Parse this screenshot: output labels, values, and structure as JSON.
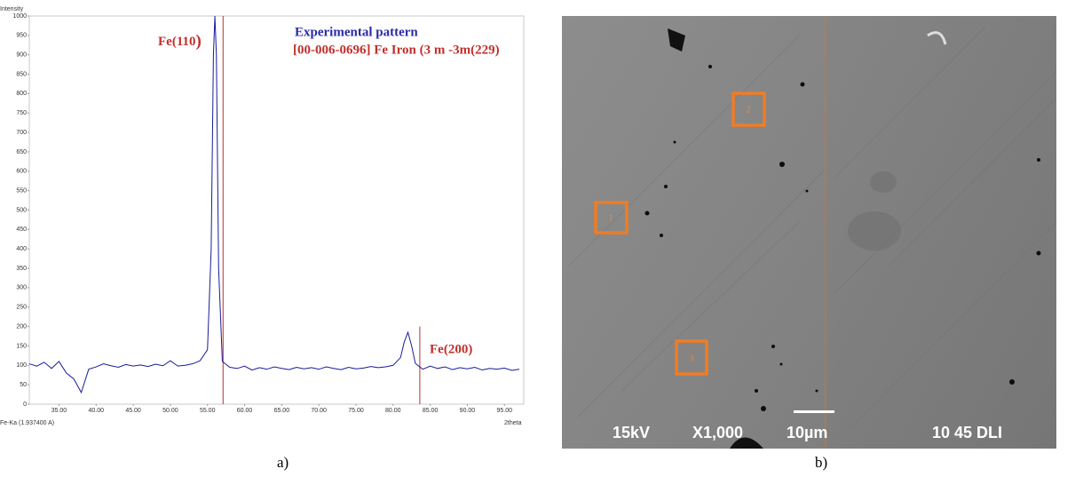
{
  "chart_data": {
    "type": "line",
    "y_axis_label": "Intensity",
    "x_axis_note": "Fe-Ka (1.937400 A)",
    "x_axis_label": "2theta",
    "xlim": [
      31,
      97.6
    ],
    "ylim": [
      0,
      1000
    ],
    "xticks": [
      {
        "value": 35,
        "label": "35.00"
      },
      {
        "value": 40,
        "label": "40.00"
      },
      {
        "value": 45,
        "label": "45.00"
      },
      {
        "value": 50,
        "label": "50.00"
      },
      {
        "value": 55,
        "label": "55.00"
      },
      {
        "value": 60,
        "label": "60.00"
      },
      {
        "value": 65,
        "label": "65.00"
      },
      {
        "value": 70,
        "label": "70.00"
      },
      {
        "value": 75,
        "label": "75.00"
      },
      {
        "value": 80,
        "label": "80.00"
      },
      {
        "value": 85,
        "label": "85.00"
      },
      {
        "value": 90,
        "label": "90.00"
      },
      {
        "value": 95,
        "label": "95.00"
      }
    ],
    "yticks": [
      0,
      50,
      100,
      150,
      200,
      250,
      300,
      350,
      400,
      450,
      500,
      550,
      600,
      650,
      700,
      750,
      800,
      850,
      900,
      950,
      1000
    ],
    "grid": false,
    "series": [
      {
        "name": "Experimental pattern",
        "color": "#1a1a9c",
        "x": [
          31,
          32,
          33,
          34,
          35,
          36,
          37,
          38,
          39,
          40,
          41,
          42,
          43,
          44,
          45,
          46,
          47,
          48,
          49,
          50,
          51,
          52,
          53,
          54,
          55,
          55.5,
          55.8,
          56,
          56.2,
          56.5,
          57,
          58,
          59,
          60,
          61,
          62,
          63,
          64,
          65,
          66,
          67,
          68,
          69,
          70,
          71,
          72,
          73,
          74,
          75,
          76,
          77,
          78,
          79,
          80,
          81,
          81.5,
          82,
          82.5,
          83,
          84,
          85,
          86,
          87,
          88,
          89,
          90,
          91,
          92,
          93,
          94,
          95,
          96,
          97
        ],
        "values": [
          104,
          98,
          108,
          92,
          110,
          80,
          65,
          30,
          90,
          96,
          104,
          99,
          95,
          102,
          98,
          101,
          97,
          103,
          99,
          112,
          98,
          100,
          104,
          112,
          140,
          400,
          900,
          1000,
          900,
          350,
          110,
          95,
          92,
          98,
          88,
          94,
          90,
          96,
          92,
          89,
          95,
          91,
          94,
          90,
          96,
          92,
          89,
          95,
          91,
          93,
          97,
          94,
          96,
          100,
          120,
          160,
          185,
          150,
          105,
          90,
          98,
          92,
          96,
          89,
          94,
          91,
          95,
          88,
          92,
          90,
          93,
          87,
          90
        ]
      }
    ],
    "reference_lines": {
      "name": "[00-006-0696] Fe Iron (3 m -3m(229)",
      "color": "#b5312f",
      "x": [
        57.1,
        83.6
      ],
      "heights": [
        1000,
        200
      ]
    },
    "annotations": [
      {
        "text": "Fe(110",
        "suffix": ")"
      },
      {
        "text": "Fe(200)"
      }
    ]
  },
  "figure": {
    "panel_labels": [
      "a)",
      "b)"
    ],
    "micrograph": {
      "regions": [
        "1",
        "2",
        "3"
      ],
      "voltage": "15kV",
      "magnification": "X1,000",
      "scale": "10µm",
      "id": "10 45 DLI"
    }
  }
}
